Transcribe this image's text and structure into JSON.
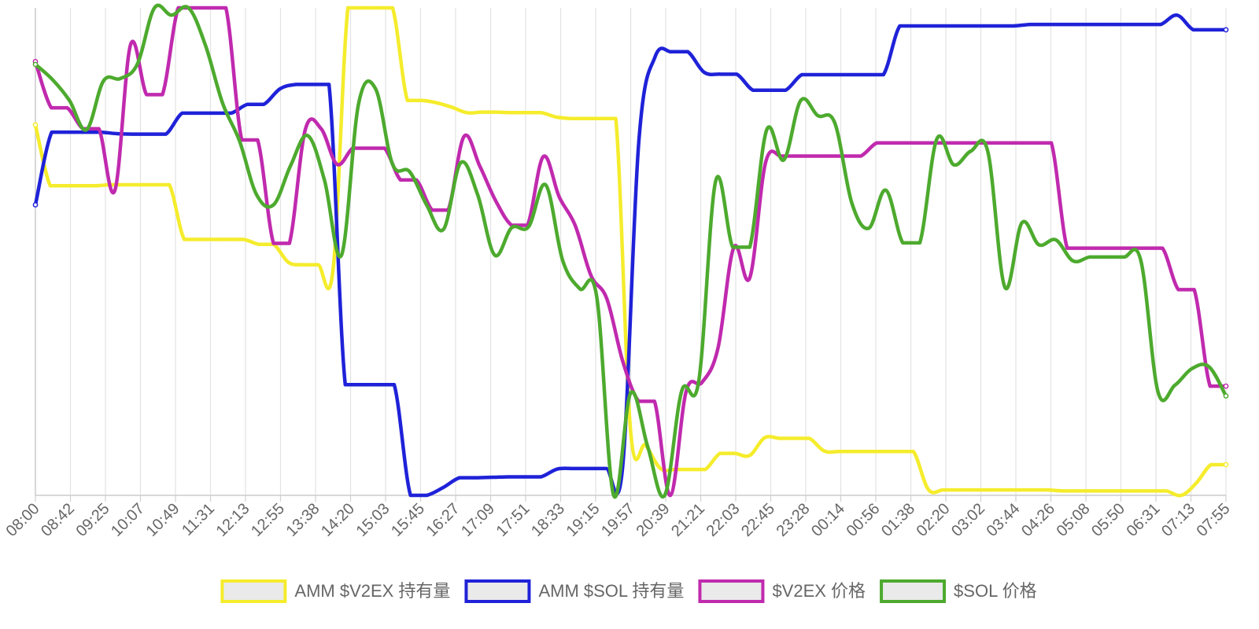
{
  "chart_data": {
    "type": "line",
    "title": "",
    "xlabel": "",
    "ylabel": "",
    "grid": true,
    "legend_position": "bottom",
    "x_tick_labels": [
      "08:00",
      "08:42",
      "09:25",
      "10:07",
      "10:49",
      "11:31",
      "12:13",
      "12:55",
      "13:38",
      "14:20",
      "15:03",
      "15:45",
      "16:27",
      "17:09",
      "17:51",
      "18:33",
      "19:15",
      "19:57",
      "20:39",
      "21:21",
      "22:03",
      "22:45",
      "23:28",
      "00:14",
      "00:56",
      "01:38",
      "02:20",
      "03:02",
      "03:44",
      "04:26",
      "05:08",
      "05:50",
      "06:31",
      "07:13",
      "07:55"
    ],
    "ylim": [
      0,
      100
    ],
    "series": [
      {
        "name": "AMM $V2EX 持有量",
        "color": "#f5ec2c",
        "values": [
          76,
          63.5,
          63.5,
          63.5,
          63.5,
          63.7,
          63.7,
          63.7,
          63.7,
          63.7,
          52.5,
          52.5,
          52.5,
          52.5,
          52.5,
          51.5,
          51.5,
          47.8,
          47.3,
          47.3,
          46.3,
          100,
          100,
          100,
          100,
          81,
          81,
          80.5,
          79.6,
          78.5,
          78.6,
          78.6,
          78.5,
          78.5,
          78.5,
          77.6,
          77.3,
          77.3,
          77.3,
          77.3,
          13,
          10.3,
          5.5,
          5.3,
          5.3,
          5.3,
          8.6,
          8.6,
          8.2,
          11.8,
          11.7,
          11.7,
          11.7,
          9.1,
          9.0,
          9.0,
          9.0,
          9.0,
          9.0,
          9.0,
          1.2,
          1.1,
          1.1,
          1.1,
          1.1,
          1.1,
          1.1,
          1.1,
          1.1,
          0.9,
          0.9,
          0.9,
          0.9,
          0.9,
          0.9,
          0.9,
          0.9,
          0,
          2.5,
          6.3,
          6.3
        ]
      },
      {
        "name": "AMM $SOL 持有量",
        "color": "#1f22d8",
        "values": [
          59.6,
          74.5,
          74.5,
          74.5,
          74.5,
          74.2,
          74.1,
          74.1,
          74.1,
          78.4,
          78.4,
          78.4,
          78.4,
          80.2,
          80.2,
          83.4,
          84.3,
          84.3,
          84.3,
          22.7,
          22.7,
          22.7,
          22.7,
          0,
          0,
          1.6,
          3.6,
          3.6,
          3.7,
          3.8,
          3.8,
          3.8,
          5.4,
          5.5,
          5.5,
          5.5,
          5.6,
          72.6,
          90,
          91,
          91,
          86.8,
          86.4,
          86.4,
          83.1,
          83.1,
          83.1,
          86.3,
          86.3,
          86.3,
          86.3,
          86.3,
          86.3,
          96.3,
          96.3,
          96.3,
          96.3,
          96.3,
          96.3,
          96.3,
          96.3,
          96.6,
          96.6,
          96.6,
          96.6,
          96.6,
          96.6,
          96.6,
          96.6,
          96.6,
          98.5,
          95.5,
          95.5,
          95.5
        ]
      },
      {
        "name": "$V2EX 价格",
        "color": "#c02aae",
        "values": [
          89,
          79.5,
          79.5,
          75.2,
          75.2,
          62.5,
          92.5,
          82.2,
          82.2,
          100,
          100,
          100,
          100,
          72.9,
          72.9,
          51.7,
          51.7,
          75,
          75.2,
          67.9,
          71.2,
          71.2,
          71.2,
          64.7,
          64.7,
          58.5,
          58.5,
          73.6,
          67.5,
          60.4,
          55.4,
          55.4,
          69.5,
          61.2,
          55.4,
          45.1,
          40.3,
          27.5,
          19.3,
          19.3,
          0,
          21.4,
          23.2,
          30.2,
          50.9,
          44.6,
          68.3,
          69.6,
          69.6,
          69.6,
          69.6,
          69.6,
          69.6,
          72.3,
          72.3,
          72.3,
          72.3,
          72.3,
          72.3,
          72.3,
          72.3,
          72.3,
          72.3,
          72.3,
          72.3,
          50.7,
          50.7,
          50.7,
          50.7,
          50.7,
          50.7,
          50.7,
          42.2,
          42.2,
          22.4,
          22.4
        ]
      },
      {
        "name": "$SOL 价格",
        "color": "#4daa2e",
        "values": [
          88.4,
          85.3,
          81,
          75,
          85,
          85.5,
          88.5,
          100,
          98.5,
          100,
          92.3,
          80.5,
          72.7,
          61.7,
          59.6,
          67.6,
          73.8,
          64.6,
          49.3,
          80.3,
          83.4,
          67.9,
          66.4,
          59.6,
          54.6,
          68.2,
          61.7,
          49.3,
          54.9,
          55.1,
          63.7,
          48.2,
          42.4,
          40.8,
          0,
          21,
          10,
          0,
          21.4,
          23.4,
          64.5,
          50.9,
          50.9,
          75,
          68.8,
          81,
          77.9,
          76.4,
          60,
          54.8,
          62.6,
          51.8,
          51.8,
          73.1,
          67.8,
          70.6,
          70.5,
          42.7,
          55.9,
          51.4,
          52.4,
          48.1,
          48.9,
          48.9,
          48.9,
          48.1,
          21.3,
          22.6,
          26,
          26.4,
          20.4
        ]
      }
    ]
  }
}
